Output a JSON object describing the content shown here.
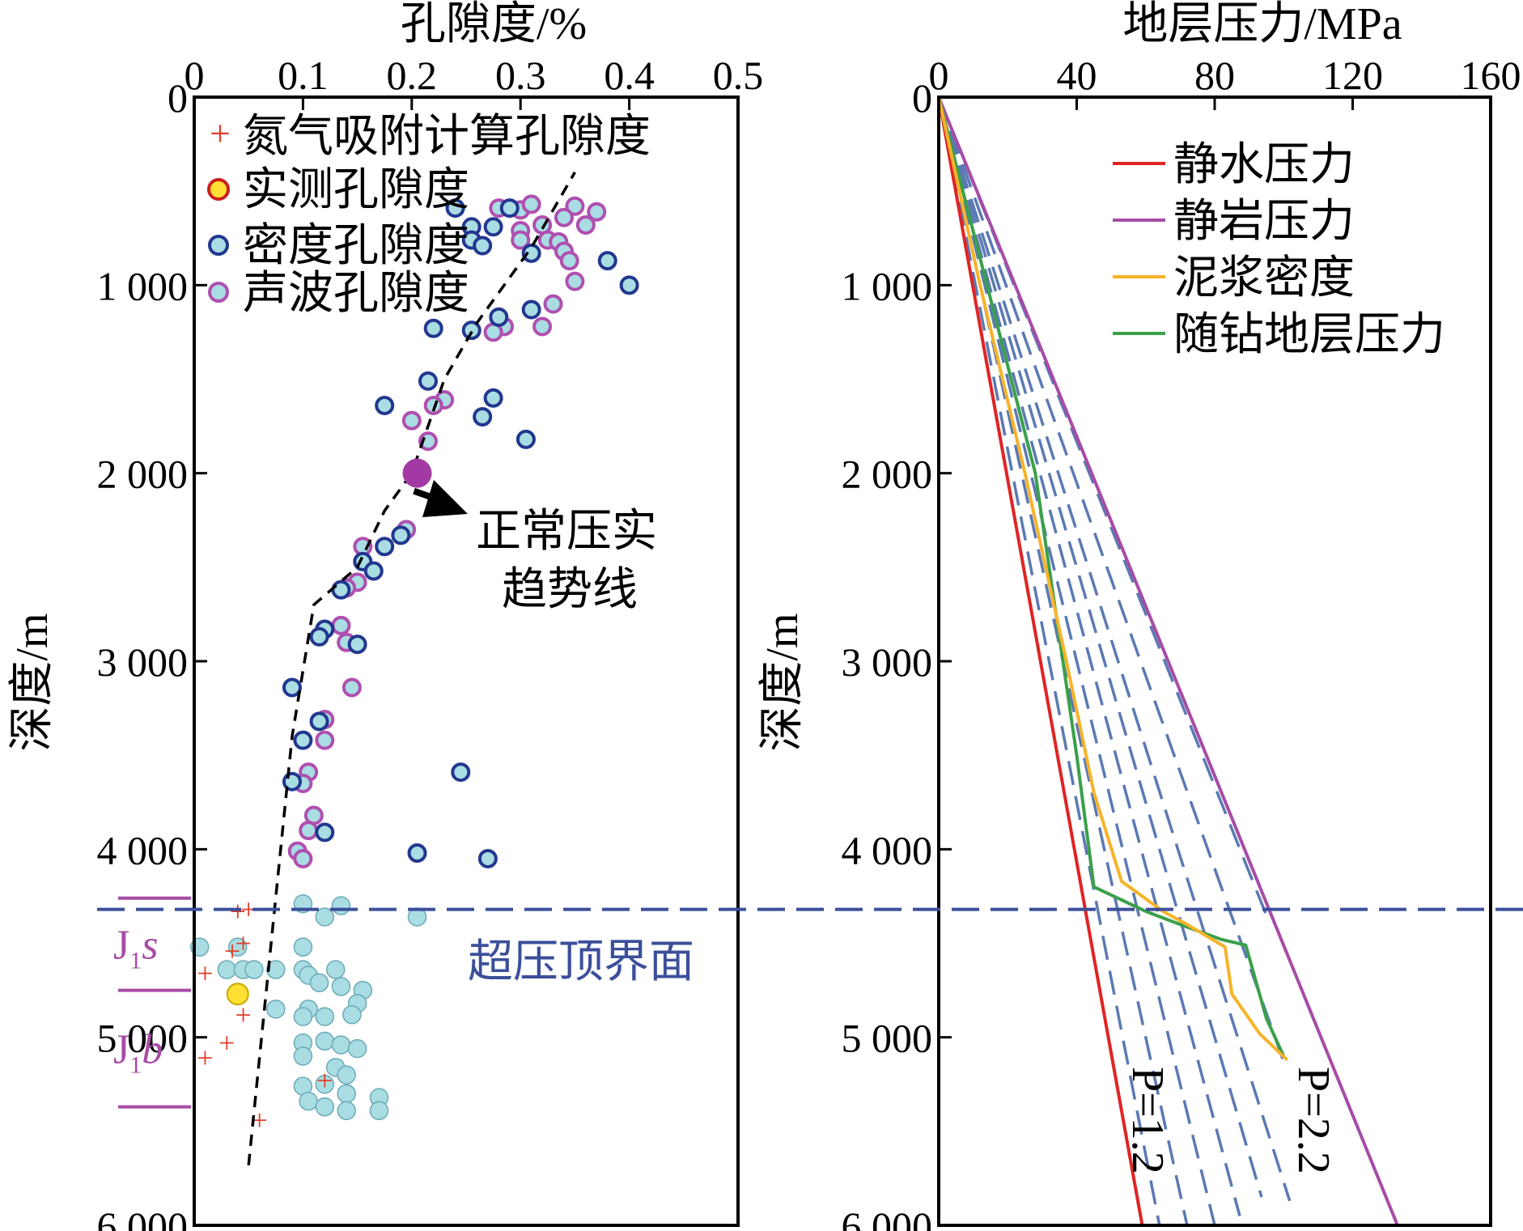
{
  "colors": {
    "nitrogen": "#e0402a",
    "measured_fill": "#ffe033",
    "measured_edge": "#cc1e1e",
    "density_fill": "#a9dde3",
    "density_edge": "#22378f",
    "sonic_fill": "#a9dde3",
    "sonic_edge": "#b04fb0",
    "lower_dots": "#a9dde3",
    "lower_dots_edge": "#6aaab6",
    "hydrostatic": "#e02424",
    "lithostatic": "#a64ca6",
    "mud": "#f7b32a",
    "lwd": "#3aa04a",
    "dashed_p": "#5b79b3",
    "overpressure_line": "#3b4f9a",
    "strat": "#a64ca6",
    "trend": "#000000",
    "arrow": "#000000",
    "highlight": "#a33aa3"
  },
  "chart_data": [
    {
      "type": "scatter",
      "title": "孔隙度/%",
      "ylabel": "深度/m",
      "xlim": [
        0,
        0.5
      ],
      "ylim": [
        6000,
        0
      ],
      "x_ticks": [
        "0",
        "0.1",
        "0.2",
        "0.3",
        "0.4",
        "0.5"
      ],
      "x_tick_values": [
        0,
        0.1,
        0.2,
        0.3,
        0.4,
        0.5
      ],
      "y_ticks": [
        "0",
        "1 000",
        "2 000",
        "3 000",
        "4 000",
        "5 000",
        "6 000"
      ],
      "y_tick_values": [
        0,
        1000,
        2000,
        3000,
        4000,
        5000,
        6000
      ],
      "legend": [
        {
          "key": "nitrogen",
          "label": "氮气吸附计算孔隙度"
        },
        {
          "key": "measured",
          "label": "实测孔隙度"
        },
        {
          "key": "density",
          "label": "密度孔隙度"
        },
        {
          "key": "sonic",
          "label": "声波孔隙度"
        }
      ],
      "series": {
        "nitrogen": [
          [
            0.04,
            4330
          ],
          [
            0.05,
            4320
          ],
          [
            0.045,
            4500
          ],
          [
            0.035,
            4540
          ],
          [
            0.01,
            4660
          ],
          [
            0.045,
            4880
          ],
          [
            0.03,
            5030
          ],
          [
            0.01,
            5110
          ],
          [
            0.12,
            5230
          ],
          [
            0.06,
            5440
          ]
        ],
        "measured": [
          [
            0.04,
            4770
          ]
        ],
        "density": [
          [
            0.24,
            590
          ],
          [
            0.255,
            690
          ],
          [
            0.275,
            690
          ],
          [
            0.29,
            590
          ],
          [
            0.255,
            760
          ],
          [
            0.265,
            790
          ],
          [
            0.31,
            830
          ],
          [
            0.38,
            870
          ],
          [
            0.4,
            1000
          ],
          [
            0.31,
            1130
          ],
          [
            0.28,
            1170
          ],
          [
            0.22,
            1230
          ],
          [
            0.255,
            1240
          ],
          [
            0.215,
            1510
          ],
          [
            0.175,
            1640
          ],
          [
            0.275,
            1600
          ],
          [
            0.265,
            1700
          ],
          [
            0.305,
            1820
          ],
          [
            0.19,
            2330
          ],
          [
            0.175,
            2390
          ],
          [
            0.155,
            2470
          ],
          [
            0.165,
            2520
          ],
          [
            0.135,
            2620
          ],
          [
            0.12,
            2830
          ],
          [
            0.115,
            2870
          ],
          [
            0.15,
            2910
          ],
          [
            0.09,
            3140
          ],
          [
            0.115,
            3320
          ],
          [
            0.1,
            3420
          ],
          [
            0.09,
            3640
          ],
          [
            0.245,
            3590
          ],
          [
            0.12,
            3910
          ],
          [
            0.205,
            4020
          ],
          [
            0.27,
            4050
          ]
        ],
        "sonic": [
          [
            0.28,
            590
          ],
          [
            0.3,
            600
          ],
          [
            0.31,
            570
          ],
          [
            0.35,
            580
          ],
          [
            0.34,
            640
          ],
          [
            0.37,
            610
          ],
          [
            0.36,
            680
          ],
          [
            0.32,
            680
          ],
          [
            0.3,
            710
          ],
          [
            0.325,
            760
          ],
          [
            0.3,
            760
          ],
          [
            0.335,
            770
          ],
          [
            0.34,
            820
          ],
          [
            0.345,
            870
          ],
          [
            0.35,
            980
          ],
          [
            0.33,
            1100
          ],
          [
            0.32,
            1220
          ],
          [
            0.285,
            1220
          ],
          [
            0.275,
            1250
          ],
          [
            0.23,
            1610
          ],
          [
            0.22,
            1640
          ],
          [
            0.2,
            1720
          ],
          [
            0.215,
            1830
          ],
          [
            0.195,
            2300
          ],
          [
            0.155,
            2390
          ],
          [
            0.15,
            2580
          ],
          [
            0.14,
            2610
          ],
          [
            0.135,
            2810
          ],
          [
            0.14,
            2900
          ],
          [
            0.145,
            3140
          ],
          [
            0.12,
            3310
          ],
          [
            0.12,
            3420
          ],
          [
            0.105,
            3590
          ],
          [
            0.1,
            3650
          ],
          [
            0.11,
            3820
          ],
          [
            0.105,
            3900
          ],
          [
            0.095,
            4010
          ],
          [
            0.1,
            4050
          ]
        ],
        "lower": [
          [
            0.1,
            4290
          ],
          [
            0.135,
            4300
          ],
          [
            0.12,
            4360
          ],
          [
            0.205,
            4360
          ],
          [
            0.005,
            4520
          ],
          [
            0.04,
            4520
          ],
          [
            0.1,
            4520
          ],
          [
            0.03,
            4640
          ],
          [
            0.045,
            4640
          ],
          [
            0.055,
            4640
          ],
          [
            0.075,
            4640
          ],
          [
            0.1,
            4640
          ],
          [
            0.13,
            4640
          ],
          [
            0.105,
            4670
          ],
          [
            0.115,
            4710
          ],
          [
            0.135,
            4730
          ],
          [
            0.155,
            4750
          ],
          [
            0.15,
            4820
          ],
          [
            0.075,
            4850
          ],
          [
            0.105,
            4850
          ],
          [
            0.1,
            4890
          ],
          [
            0.12,
            4890
          ],
          [
            0.145,
            4880
          ],
          [
            0.12,
            5020
          ],
          [
            0.1,
            5030
          ],
          [
            0.135,
            5040
          ],
          [
            0.15,
            5060
          ],
          [
            0.1,
            5100
          ],
          [
            0.13,
            5160
          ],
          [
            0.1,
            5260
          ],
          [
            0.14,
            5200
          ],
          [
            0.12,
            5250
          ],
          [
            0.14,
            5300
          ],
          [
            0.17,
            5320
          ],
          [
            0.105,
            5340
          ],
          [
            0.12,
            5370
          ],
          [
            0.14,
            5390
          ],
          [
            0.17,
            5390
          ]
        ]
      },
      "trend_line": [
        [
          0.05,
          5680
        ],
        [
          0.09,
          3400
        ],
        [
          0.11,
          2700
        ],
        [
          0.15,
          2500
        ],
        [
          0.175,
          2200
        ],
        [
          0.2,
          2000
        ],
        [
          0.23,
          1500
        ],
        [
          0.26,
          1200
        ],
        [
          0.31,
          800
        ],
        [
          0.35,
          400
        ]
      ],
      "highlight_point": [
        0.205,
        2000
      ],
      "annotations": {
        "trend_label_line1": "正常压实",
        "trend_label_line2": "趋势线",
        "overpressure": "超压顶界面",
        "overpressure_depth": 4320
      },
      "strat": {
        "units": [
          {
            "main": "J",
            "sub": "1",
            "italic": "s",
            "top": 4260,
            "bottom": 4750
          },
          {
            "main": "J",
            "sub": "1",
            "italic": "b",
            "top": 4750,
            "bottom": 5370
          }
        ]
      }
    },
    {
      "type": "line",
      "title": "地层压力/MPa",
      "ylabel": "深度/m",
      "xlim": [
        0,
        160
      ],
      "ylim": [
        6000,
        0
      ],
      "x_ticks": [
        "0",
        "40",
        "80",
        "120",
        "160"
      ],
      "x_tick_values": [
        0,
        40,
        80,
        120,
        160
      ],
      "y_ticks": [
        "0",
        "1 000",
        "2 000",
        "3 000",
        "4 000",
        "5 000",
        "6 000"
      ],
      "y_tick_values": [
        0,
        1000,
        2000,
        3000,
        4000,
        5000,
        6000
      ],
      "legend": [
        {
          "key": "hydrostatic",
          "label": "静水压力"
        },
        {
          "key": "lithostatic",
          "label": "静岩压力"
        },
        {
          "key": "mud",
          "label": "泥浆密度"
        },
        {
          "key": "lwd",
          "label": "随钻地层压力"
        }
      ],
      "series": {
        "hydrostatic": [
          [
            0,
            0
          ],
          [
            59,
            6000
          ]
        ],
        "lithostatic": [
          [
            0,
            0
          ],
          [
            133,
            6000
          ]
        ],
        "mud": [
          [
            0,
            0
          ],
          [
            12,
            1000
          ],
          [
            25,
            2000
          ],
          [
            37,
            3000
          ],
          [
            45,
            3700
          ],
          [
            53,
            4170
          ],
          [
            65,
            4330
          ],
          [
            72,
            4400
          ],
          [
            83,
            4520
          ],
          [
            85,
            4770
          ],
          [
            93,
            4980
          ],
          [
            101,
            5120
          ]
        ],
        "lwd": [
          [
            0,
            0
          ],
          [
            14,
            1000
          ],
          [
            28,
            2000
          ],
          [
            36,
            3000
          ],
          [
            40,
            3500
          ],
          [
            45,
            4200
          ],
          [
            60,
            4330
          ],
          [
            70,
            4400
          ],
          [
            82,
            4480
          ],
          [
            89,
            4510
          ],
          [
            95,
            4900
          ],
          [
            100,
            5100
          ]
        ]
      },
      "dashed_gradients": [
        [
          0,
          0,
          59,
          6000
        ],
        [
          0,
          0,
          64,
          6000
        ],
        [
          0,
          0,
          72,
          6000
        ],
        [
          0,
          0,
          80,
          6000
        ],
        [
          0,
          0,
          88,
          6000
        ],
        [
          0,
          0,
          96,
          6000
        ],
        [
          0,
          0,
          104,
          6000
        ],
        [
          0,
          0,
          117,
          6000
        ],
        [
          0,
          0,
          131,
          6000
        ]
      ],
      "dashed_clip_depths": [
        null,
        6000,
        6000,
        6000,
        5950,
        5850,
        5870,
        5150,
        4350
      ],
      "labels": {
        "p_low": "P=1.2",
        "p_high": "P=2.2"
      }
    }
  ]
}
